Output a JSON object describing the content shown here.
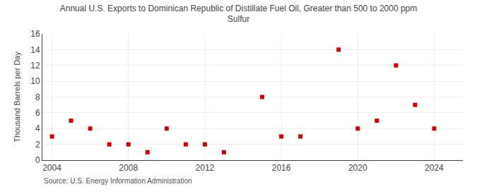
{
  "chart_data": {
    "type": "scatter",
    "title": "Annual U.S. Exports to Dominican Republic of Distillate Fuel Oil, Greater than 500 to 2000 ppm\nSulfur",
    "ylabel": "Thousand Barrels per Day",
    "annotations": [
      "Source: U.S. Energy Information Administration"
    ],
    "x": [
      2004,
      2005,
      2006,
      2007,
      2008,
      2009,
      2010,
      2011,
      2012,
      2013,
      2015,
      2016,
      2017,
      2019,
      2020,
      2021,
      2022,
      2023,
      2024
    ],
    "values": [
      3,
      5,
      4,
      2,
      2,
      1,
      4,
      2,
      2,
      1,
      8,
      3,
      3,
      14,
      4,
      5,
      12,
      7,
      4
    ],
    "color": "#cc0000",
    "marker": "square",
    "xlim": [
      2003.5,
      2025.5
    ],
    "xticks": [
      2004,
      2008,
      2012,
      2016,
      2020,
      2024
    ],
    "ylim": [
      0,
      16
    ],
    "yticks": [
      0,
      2,
      4,
      6,
      8,
      10,
      12,
      14,
      16
    ],
    "grid": true
  }
}
